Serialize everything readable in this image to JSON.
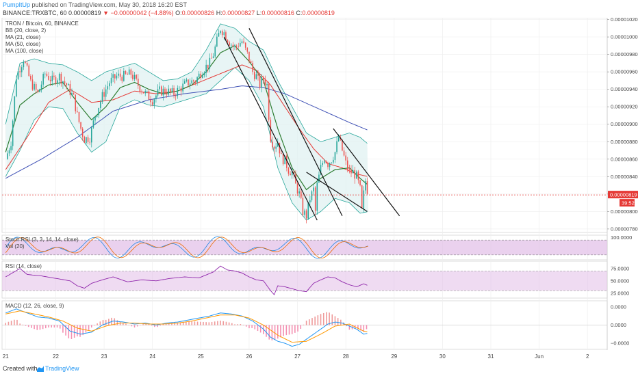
{
  "header": {
    "author": "PumpItUp",
    "published_text": "published on TradingView.com, May 30, 2018 16:20 EST",
    "symbol_line": "BINANCE:TRXBTC, 60",
    "last_price": "0.00000819",
    "change": "▼ −0.00000042 (−4.88%)",
    "o_label": "O:",
    "o_value": "0.00000826",
    "h_label": "H:",
    "h_value": "0.00000827",
    "l_label": "L:",
    "l_value": "0.00000816",
    "c_label": "C:",
    "c_value": "0.00000819"
  },
  "footer": {
    "created_with": "Created with",
    "brand": "TradingView"
  },
  "colors": {
    "up": "#26a69a",
    "down": "#ef5350",
    "bb": "#26a69a",
    "bb_fill": "#e0f2f1",
    "ma21": "#2e7d32",
    "ma50": "#e53935",
    "ma100": "#3f51b5",
    "stoch_k": "#1e88e5",
    "stoch_d": "#ef6c00",
    "osc_fill": "#e1bee7",
    "rsi": "#8e24aa",
    "macd": "#2196f3",
    "signal": "#ff9800",
    "price_tag": "#e53935"
  },
  "chart_data": {
    "type": "candlestick",
    "main": {
      "legend": [
        "TRON / Bitcoin, 60, BINANCE",
        "BB (20, close, 2)",
        "MA (21, close)",
        "MA (50, close)",
        "MA (100, close)"
      ],
      "y_ticks": [
        "0.00001020",
        "0.00001000",
        "0.00000980",
        "0.00000960",
        "0.00000940",
        "0.00000920",
        "0.00000900",
        "0.00000880",
        "0.00000860",
        "0.00000840",
        "0.00000820",
        "0.00000800",
        "0.00000780"
      ],
      "ylim": [
        7.76e-06,
        1.022e-05
      ],
      "current_price_label": "0.00000819",
      "countdown_label": "39:52",
      "current_price": 8.19e-06,
      "price_path": [
        [
          0,
          8.6e-06
        ],
        [
          1.5,
          8.8e-06
        ],
        [
          3,
          9.55e-06
        ],
        [
          5,
          9.75e-06
        ],
        [
          7,
          9.48e-06
        ],
        [
          9,
          9.35e-06
        ],
        [
          11,
          9.58e-06
        ],
        [
          13,
          9.5e-06
        ],
        [
          15,
          9.55e-06
        ],
        [
          17,
          9.45e-06
        ],
        [
          19,
          9.3e-06
        ],
        [
          20,
          9.1e-06
        ],
        [
          21,
          8.95e-06
        ],
        [
          22,
          8.83e-06
        ],
        [
          23.5,
          8.85e-06
        ],
        [
          25,
          9.1e-06
        ],
        [
          27,
          9.32e-06
        ],
        [
          29,
          9.48e-06
        ],
        [
          31,
          9.55e-06
        ],
        [
          33,
          9.55e-06
        ],
        [
          35,
          9.58e-06
        ],
        [
          37,
          9.45e-06
        ],
        [
          39,
          9.35e-06
        ],
        [
          41,
          9.28e-06
        ],
        [
          43,
          9.38e-06
        ],
        [
          45,
          9.38e-06
        ],
        [
          47,
          9.35e-06
        ],
        [
          49,
          9.42e-06
        ],
        [
          51,
          9.48e-06
        ],
        [
          53,
          9.5e-06
        ],
        [
          55,
          9.62e-06
        ],
        [
          57,
          9.7e-06
        ],
        [
          58,
          9.8e-06
        ],
        [
          59,
          9.95e-06
        ],
        [
          60,
          1.01e-05
        ],
        [
          61,
          1.005e-05
        ],
        [
          62,
          9.98e-06
        ],
        [
          63,
          9.92e-06
        ],
        [
          64,
          9.88e-06
        ],
        [
          65,
          9.92e-06
        ],
        [
          66,
          9.95e-06
        ],
        [
          67,
          9.85e-06
        ],
        [
          68,
          9.75e-06
        ],
        [
          69,
          9.6e-06
        ],
        [
          70,
          9.55e-06
        ],
        [
          71,
          9.45e-06
        ],
        [
          72,
          9.52e-06
        ],
        [
          73,
          9.45e-06
        ],
        [
          73.5,
          9.1e-06
        ],
        [
          74,
          8.85e-06
        ],
        [
          75,
          8.75e-06
        ],
        [
          76,
          8.8e-06
        ],
        [
          77,
          8.62e-06
        ],
        [
          78,
          8.58e-06
        ],
        [
          79,
          8.48e-06
        ],
        [
          80,
          8.45e-06
        ],
        [
          81,
          8.3e-06
        ],
        [
          82,
          8.2e-06
        ],
        [
          83,
          8e-06
        ],
        [
          84,
          7.95e-06
        ],
        [
          85,
          8.15e-06
        ],
        [
          86,
          8.25e-06
        ],
        [
          86.5,
          8e-06
        ],
        [
          87,
          8.3e-06
        ],
        [
          88,
          8.5e-06
        ],
        [
          89,
          8.62e-06
        ],
        [
          90,
          8.55e-06
        ],
        [
          91,
          8.6e-06
        ],
        [
          92,
          8.68e-06
        ],
        [
          93,
          8.85e-06
        ],
        [
          94,
          8.7e-06
        ],
        [
          95,
          8.55e-06
        ],
        [
          96,
          8.45e-06
        ],
        [
          97,
          8.45e-06
        ],
        [
          98,
          8.4e-06
        ],
        [
          99,
          8.25e-06
        ],
        [
          99.5,
          8e-06
        ],
        [
          100,
          8.2e-06
        ],
        [
          100.5,
          8.35e-06
        ],
        [
          101,
          8.25e-06
        ],
        [
          101.3,
          8.19e-06
        ]
      ],
      "ma21": [
        [
          0,
          8.68e-06
        ],
        [
          4,
          9.22e-06
        ],
        [
          8,
          9.35e-06
        ],
        [
          12,
          9.45e-06
        ],
        [
          16,
          9.48e-06
        ],
        [
          20,
          9.25e-06
        ],
        [
          24,
          9.05e-06
        ],
        [
          28,
          9.2e-06
        ],
        [
          32,
          9.42e-06
        ],
        [
          36,
          9.48e-06
        ],
        [
          40,
          9.4e-06
        ],
        [
          44,
          9.35e-06
        ],
        [
          48,
          9.38e-06
        ],
        [
          52,
          9.45e-06
        ],
        [
          56,
          9.6e-06
        ],
        [
          60,
          9.82e-06
        ],
        [
          64,
          9.9e-06
        ],
        [
          68,
          9.72e-06
        ],
        [
          72,
          9.5e-06
        ],
        [
          76,
          8.95e-06
        ],
        [
          80,
          8.5e-06
        ],
        [
          84,
          8.25e-06
        ],
        [
          88,
          8.38e-06
        ],
        [
          92,
          8.48e-06
        ],
        [
          96,
          8.5e-06
        ],
        [
          99,
          8.38e-06
        ],
        [
          101.3,
          8.3e-06
        ]
      ],
      "ma50": [
        [
          0,
          8.48e-06
        ],
        [
          6,
          8.85e-06
        ],
        [
          12,
          9.25e-06
        ],
        [
          18,
          9.4e-06
        ],
        [
          24,
          9.25e-06
        ],
        [
          30,
          9.28e-06
        ],
        [
          36,
          9.38e-06
        ],
        [
          42,
          9.35e-06
        ],
        [
          48,
          9.38e-06
        ],
        [
          54,
          9.48e-06
        ],
        [
          60,
          9.58e-06
        ],
        [
          66,
          9.68e-06
        ],
        [
          70,
          9.62e-06
        ],
        [
          74,
          9.45e-06
        ],
        [
          78,
          9.2e-06
        ],
        [
          82,
          8.95e-06
        ],
        [
          86,
          8.72e-06
        ],
        [
          90,
          8.55e-06
        ],
        [
          94,
          8.5e-06
        ],
        [
          98,
          8.43e-06
        ],
        [
          101.3,
          8.4e-06
        ]
      ],
      "ma100": [
        [
          0,
          8.38e-06
        ],
        [
          10,
          8.6e-06
        ],
        [
          20,
          8.85e-06
        ],
        [
          30,
          9.15e-06
        ],
        [
          40,
          9.28e-06
        ],
        [
          50,
          9.35e-06
        ],
        [
          60,
          9.4e-06
        ],
        [
          66,
          9.44e-06
        ],
        [
          72,
          9.42e-06
        ],
        [
          78,
          9.35e-06
        ],
        [
          84,
          9.24e-06
        ],
        [
          90,
          9.13e-06
        ],
        [
          96,
          9.02e-06
        ],
        [
          101.3,
          8.93e-06
        ]
      ],
      "bb_upper": [
        [
          0,
          9e-06
        ],
        [
          4,
          9.7e-06
        ],
        [
          8,
          9.75e-06
        ],
        [
          12,
          9.7e-06
        ],
        [
          16,
          9.68e-06
        ],
        [
          20,
          9.6e-06
        ],
        [
          24,
          9.5e-06
        ],
        [
          28,
          9.6e-06
        ],
        [
          32,
          9.65e-06
        ],
        [
          36,
          9.7e-06
        ],
        [
          40,
          9.6e-06
        ],
        [
          44,
          9.5e-06
        ],
        [
          48,
          9.52e-06
        ],
        [
          52,
          9.6e-06
        ],
        [
          56,
          9.85e-06
        ],
        [
          60,
          1.015e-05
        ],
        [
          64,
          1.01e-05
        ],
        [
          68,
          9.95e-06
        ],
        [
          72,
          9.85e-06
        ],
        [
          76,
          9.5e-06
        ],
        [
          80,
          9.2e-06
        ],
        [
          84,
          8.9e-06
        ],
        [
          88,
          8.8e-06
        ],
        [
          92,
          8.85e-06
        ],
        [
          96,
          8.9e-06
        ],
        [
          99,
          8.85e-06
        ],
        [
          101.3,
          8.77e-06
        ]
      ],
      "bb_lower": [
        [
          0,
          8.4e-06
        ],
        [
          4,
          8.7e-06
        ],
        [
          8,
          9.05e-06
        ],
        [
          12,
          9.2e-06
        ],
        [
          16,
          9.18e-06
        ],
        [
          20,
          8.9e-06
        ],
        [
          24,
          8.68e-06
        ],
        [
          28,
          8.8e-06
        ],
        [
          32,
          9.2e-06
        ],
        [
          36,
          9.28e-06
        ],
        [
          40,
          9.22e-06
        ],
        [
          44,
          9.2e-06
        ],
        [
          48,
          9.25e-06
        ],
        [
          52,
          9.3e-06
        ],
        [
          56,
          9.35e-06
        ],
        [
          60,
          9.5e-06
        ],
        [
          64,
          9.65e-06
        ],
        [
          68,
          9.5e-06
        ],
        [
          72,
          9.2e-06
        ],
        [
          76,
          8.5e-06
        ],
        [
          80,
          8.1e-06
        ],
        [
          84,
          7.9e-06
        ],
        [
          88,
          8e-06
        ],
        [
          92,
          8.15e-06
        ],
        [
          96,
          8.1e-06
        ],
        [
          99,
          7.98e-06
        ],
        [
          101.3,
          8e-06
        ]
      ],
      "trendlines": [
        [
          [
            61,
            1e-05
          ],
          [
            87,
            7.9e-06
          ]
        ],
        [
          [
            68,
            1.01e-05
          ],
          [
            94,
            7.95e-06
          ]
        ],
        [
          [
            84,
            8.45e-06
          ],
          [
            101,
            8e-06
          ]
        ],
        [
          [
            91.5,
            8.95e-06
          ],
          [
            110,
            7.95e-06
          ]
        ]
      ]
    },
    "stoch": {
      "legend": [
        "Stoch RSI (3, 3, 14, 14, close)",
        "Vol (20)"
      ],
      "y_ticks": [
        "100.0000"
      ],
      "band": [
        20,
        80
      ],
      "ylim": [
        0,
        100
      ]
    },
    "rsi": {
      "legend": [
        "RSI (14, close)"
      ],
      "y_ticks": [
        "75.0000",
        "50.0000",
        "25.0000"
      ],
      "ylim": [
        15,
        90
      ],
      "band": [
        30,
        70
      ],
      "values": [
        [
          0,
          58
        ],
        [
          4,
          75
        ],
        [
          6,
          63
        ],
        [
          10,
          60
        ],
        [
          14,
          55
        ],
        [
          18,
          50
        ],
        [
          20,
          40
        ],
        [
          22,
          35
        ],
        [
          24,
          45
        ],
        [
          27,
          52
        ],
        [
          30,
          58
        ],
        [
          34,
          48
        ],
        [
          38,
          52
        ],
        [
          42,
          50
        ],
        [
          46,
          55
        ],
        [
          50,
          58
        ],
        [
          54,
          56
        ],
        [
          56,
          62
        ],
        [
          58,
          68
        ],
        [
          60,
          80
        ],
        [
          62,
          72
        ],
        [
          64,
          70
        ],
        [
          66,
          66
        ],
        [
          68,
          58
        ],
        [
          70,
          52
        ],
        [
          72,
          50
        ],
        [
          74,
          30
        ],
        [
          75,
          22
        ],
        [
          76,
          40
        ],
        [
          78,
          38
        ],
        [
          80,
          34
        ],
        [
          82,
          30
        ],
        [
          84,
          28
        ],
        [
          86,
          45
        ],
        [
          88,
          52
        ],
        [
          90,
          58
        ],
        [
          92,
          56
        ],
        [
          94,
          48
        ],
        [
          96,
          42
        ],
        [
          98,
          38
        ],
        [
          100,
          44
        ],
        [
          101.3,
          40
        ]
      ]
    },
    "macd": {
      "legend": [
        "MACD (12, 26, close, 9)"
      ],
      "y_ticks": [
        "0.0000",
        "0.0000",
        "−0.0000"
      ],
      "ylim": [
        -1.2,
        1.2
      ],
      "macd_values": [
        [
          0,
          0.6
        ],
        [
          3,
          0.8
        ],
        [
          6,
          0.6
        ],
        [
          9,
          0.4
        ],
        [
          12,
          0.35
        ],
        [
          15,
          0.2
        ],
        [
          18,
          -0.3
        ],
        [
          21,
          -0.45
        ],
        [
          24,
          -0.35
        ],
        [
          27,
          0.0
        ],
        [
          30,
          0.2
        ],
        [
          33,
          0.15
        ],
        [
          36,
          0.05
        ],
        [
          39,
          0.1
        ],
        [
          42,
          0.0
        ],
        [
          45,
          0.1
        ],
        [
          48,
          0.15
        ],
        [
          51,
          0.25
        ],
        [
          54,
          0.35
        ],
        [
          57,
          0.45
        ],
        [
          60,
          0.6
        ],
        [
          63,
          0.55
        ],
        [
          66,
          0.45
        ],
        [
          69,
          0.2
        ],
        [
          72,
          -0.2
        ],
        [
          74,
          -0.6
        ],
        [
          76,
          -0.8
        ],
        [
          78,
          -0.9
        ],
        [
          80,
          -1.05
        ],
        [
          82,
          -0.95
        ],
        [
          84,
          -0.7
        ],
        [
          86,
          -0.45
        ],
        [
          88,
          -0.2
        ],
        [
          90,
          0.05
        ],
        [
          92,
          0.15
        ],
        [
          94,
          0.1
        ],
        [
          96,
          -0.05
        ],
        [
          98,
          -0.2
        ],
        [
          100,
          -0.45
        ],
        [
          101.3,
          -0.4
        ]
      ],
      "signal_values": [
        [
          0,
          0.55
        ],
        [
          4,
          0.7
        ],
        [
          8,
          0.55
        ],
        [
          12,
          0.4
        ],
        [
          16,
          0.2
        ],
        [
          20,
          -0.15
        ],
        [
          24,
          -0.3
        ],
        [
          28,
          -0.05
        ],
        [
          32,
          0.1
        ],
        [
          36,
          0.1
        ],
        [
          40,
          0.05
        ],
        [
          44,
          0.05
        ],
        [
          48,
          0.1
        ],
        [
          52,
          0.2
        ],
        [
          56,
          0.35
        ],
        [
          60,
          0.5
        ],
        [
          64,
          0.5
        ],
        [
          68,
          0.35
        ],
        [
          72,
          0.0
        ],
        [
          76,
          -0.5
        ],
        [
          80,
          -0.85
        ],
        [
          84,
          -0.8
        ],
        [
          88,
          -0.45
        ],
        [
          92,
          -0.05
        ],
        [
          96,
          0.05
        ],
        [
          100,
          -0.3
        ],
        [
          101.3,
          -0.35
        ]
      ]
    },
    "x_ticks": [
      {
        "label": "21",
        "x": 0
      },
      {
        "label": "22",
        "x": 14
      },
      {
        "label": "23",
        "x": 27.5
      },
      {
        "label": "24",
        "x": 41
      },
      {
        "label": "25",
        "x": 54.5
      },
      {
        "label": "26",
        "x": 68
      },
      {
        "label": "27",
        "x": 81.5
      },
      {
        "label": "28",
        "x": 95
      },
      {
        "label": "29",
        "x": 108.5
      },
      {
        "label": "30",
        "x": 122
      },
      {
        "label": "31",
        "x": 135.5
      },
      {
        "label": "Jun",
        "x": 149
      },
      {
        "label": "2",
        "x": 162.5
      }
    ],
    "x_range": [
      -1,
      168
    ]
  }
}
